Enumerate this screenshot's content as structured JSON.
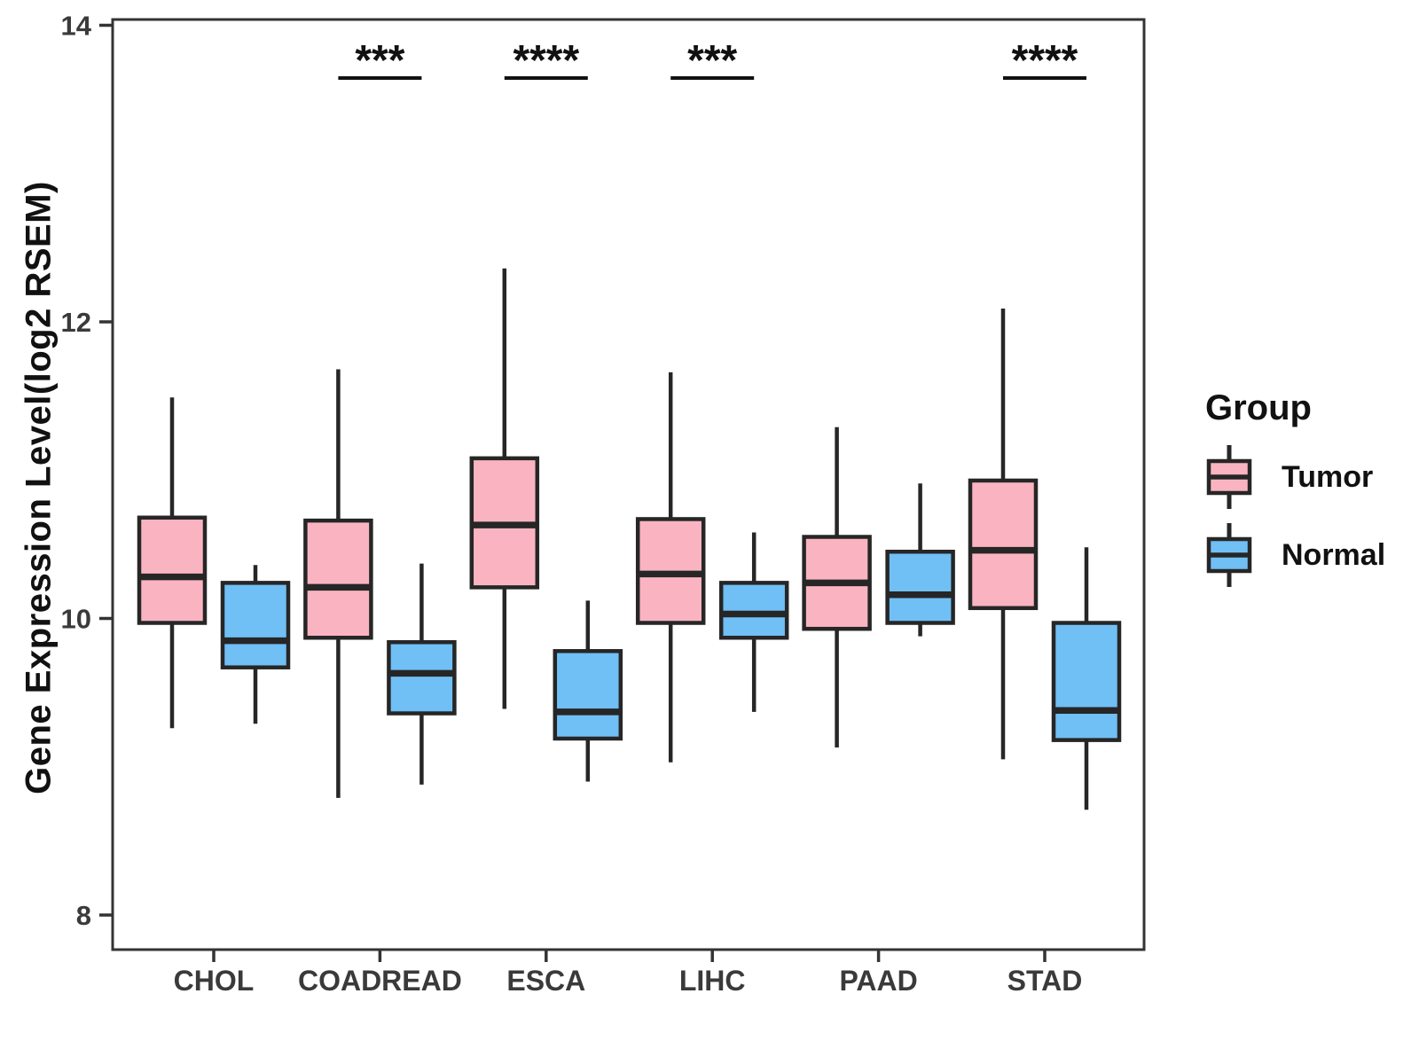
{
  "chart_data": {
    "type": "grouped_boxplot",
    "title": "",
    "xlabel": "",
    "ylabel": "Gene Expression Level(log2 RSEM)",
    "y_ticks": [
      8,
      10,
      12,
      14
    ],
    "ylim": [
      7.75,
      14.05
    ],
    "grid": "off",
    "categories": [
      "CHOL",
      "COADREAD",
      "ESCA",
      "LIHC",
      "PAAD",
      "STAD"
    ],
    "significance": [
      null,
      "***",
      "****",
      "***",
      null,
      "****"
    ],
    "legend": {
      "title": "Group",
      "position": "right"
    },
    "series": [
      {
        "name": "Tumor",
        "color": "#FAB4C1",
        "boxes": [
          {
            "category": "CHOL",
            "whisker_low": 9.26,
            "q1": 9.97,
            "median": 10.28,
            "q3": 10.68,
            "whisker_high": 11.49
          },
          {
            "category": "COADREAD",
            "whisker_low": 8.79,
            "q1": 9.87,
            "median": 10.21,
            "q3": 10.66,
            "whisker_high": 11.68
          },
          {
            "category": "ESCA",
            "whisker_low": 9.39,
            "q1": 10.21,
            "median": 10.63,
            "q3": 11.08,
            "whisker_high": 12.36
          },
          {
            "category": "LIHC",
            "whisker_low": 9.03,
            "q1": 9.97,
            "median": 10.3,
            "q3": 10.67,
            "whisker_high": 11.66
          },
          {
            "category": "PAAD",
            "whisker_low": 9.13,
            "q1": 9.93,
            "median": 10.24,
            "q3": 10.55,
            "whisker_high": 11.29
          },
          {
            "category": "STAD",
            "whisker_low": 9.05,
            "q1": 10.07,
            "median": 10.46,
            "q3": 10.93,
            "whisker_high": 12.09
          }
        ]
      },
      {
        "name": "Normal",
        "color": "#70BFF5",
        "boxes": [
          {
            "category": "CHOL",
            "whisker_low": 9.29,
            "q1": 9.67,
            "median": 9.85,
            "q3": 10.24,
            "whisker_high": 10.36
          },
          {
            "category": "COADREAD",
            "whisker_low": 8.88,
            "q1": 9.36,
            "median": 9.63,
            "q3": 9.84,
            "whisker_high": 10.37
          },
          {
            "category": "ESCA",
            "whisker_low": 8.9,
            "q1": 9.19,
            "median": 9.37,
            "q3": 9.78,
            "whisker_high": 10.12
          },
          {
            "category": "LIHC",
            "whisker_low": 9.37,
            "q1": 9.87,
            "median": 10.03,
            "q3": 10.24,
            "whisker_high": 10.58
          },
          {
            "category": "PAAD",
            "whisker_low": 9.88,
            "q1": 9.97,
            "median": 10.16,
            "q3": 10.45,
            "whisker_high": 10.91
          },
          {
            "category": "STAD",
            "whisker_low": 8.71,
            "q1": 9.18,
            "median": 9.38,
            "q3": 9.97,
            "whisker_high": 10.48
          }
        ]
      }
    ],
    "style": {
      "stroke_color": "#262626",
      "axis_text_color": "#3a3a3a",
      "annotation_color": "#111111"
    }
  }
}
